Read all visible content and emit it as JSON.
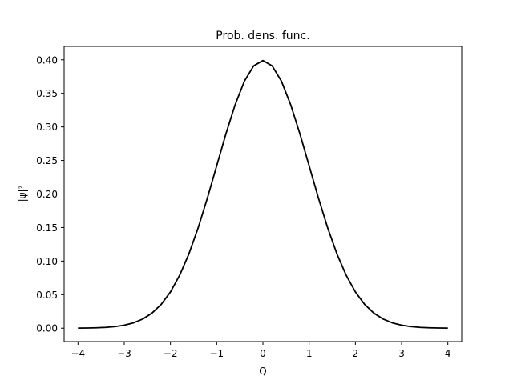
{
  "chart_data": {
    "type": "line",
    "title": "Prob. dens. func.",
    "xlabel": "Q",
    "ylabel": "|ψ|²",
    "xlim": [
      -4.3,
      4.3
    ],
    "ylim": [
      -0.02,
      0.42
    ],
    "xticks": [
      -4,
      -3,
      -2,
      -1,
      0,
      1,
      2,
      3,
      4
    ],
    "xtick_labels": [
      "−4",
      "−3",
      "−2",
      "−1",
      "0",
      "1",
      "2",
      "3",
      "4"
    ],
    "yticks": [
      0.0,
      0.05,
      0.1,
      0.15,
      0.2,
      0.25,
      0.3,
      0.35,
      0.4
    ],
    "ytick_labels": [
      "0.00",
      "0.05",
      "0.10",
      "0.15",
      "0.20",
      "0.25",
      "0.30",
      "0.35",
      "0.40"
    ],
    "grid": false,
    "line_color": "#000000",
    "series": [
      {
        "x": [
          -4.0,
          -3.8,
          -3.6,
          -3.4,
          -3.2,
          -3.0,
          -2.8,
          -2.6,
          -2.4,
          -2.2,
          -2.0,
          -1.8,
          -1.6,
          -1.4,
          -1.2,
          -1.0,
          -0.8,
          -0.6,
          -0.4,
          -0.2,
          0.0,
          0.2,
          0.4,
          0.6,
          0.8,
          1.0,
          1.2,
          1.4,
          1.6,
          1.8,
          2.0,
          2.2,
          2.4,
          2.6,
          2.8,
          3.0,
          3.2,
          3.4,
          3.6,
          3.8,
          4.0
        ],
        "values": [
          0.0001,
          0.0003,
          0.0006,
          0.0012,
          0.0024,
          0.0044,
          0.0079,
          0.0136,
          0.0224,
          0.0355,
          0.054,
          0.079,
          0.1109,
          0.1497,
          0.1942,
          0.242,
          0.2897,
          0.3332,
          0.3683,
          0.391,
          0.3989,
          0.391,
          0.3683,
          0.3332,
          0.2897,
          0.242,
          0.1942,
          0.1497,
          0.1109,
          0.079,
          0.054,
          0.0355,
          0.0224,
          0.0136,
          0.0079,
          0.0044,
          0.0024,
          0.0012,
          0.0006,
          0.0003,
          0.0001
        ]
      }
    ]
  }
}
